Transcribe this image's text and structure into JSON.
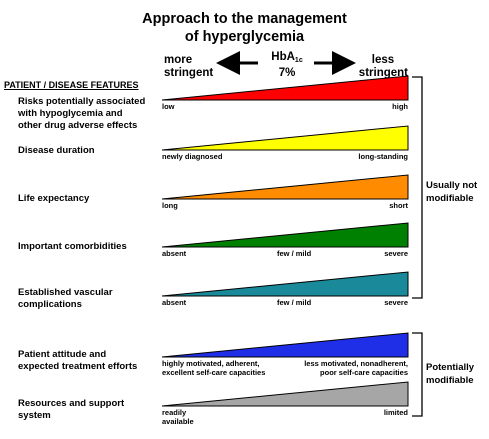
{
  "title_line1": "Approach to the management",
  "title_line2": "of hyperglycemia",
  "more_stringent_line1": "more",
  "more_stringent_line2": "stringent",
  "less_stringent_line1": "less",
  "less_stringent_line2": "stringent",
  "hba_label": "HbA",
  "hba_sub": "1c",
  "hba_value": "7%",
  "features_header": "PATIENT / DISEASE FEATURES",
  "colors": {
    "red": "#ff0000",
    "yellow": "#ffff00",
    "orange": "#ff8c00",
    "green": "#008000",
    "teal": "#1a8a9a",
    "blue": "#1f2fe8",
    "gray": "#a6a6a6"
  },
  "features": [
    {
      "label_lines": [
        "Risks potentially associated",
        "with hypoglycemia and",
        "other drug adverse effects"
      ],
      "color": "red",
      "ticks": [
        "low",
        "high"
      ]
    },
    {
      "label_lines": [
        "Disease duration"
      ],
      "color": "yellow",
      "ticks": [
        "newly diagnosed",
        "long-standing"
      ]
    },
    {
      "label_lines": [
        "Life expectancy"
      ],
      "color": "orange",
      "ticks": [
        "long",
        "short"
      ]
    },
    {
      "label_lines": [
        "Important comorbidities"
      ],
      "color": "green",
      "ticks": [
        "absent",
        "few / mild",
        "severe"
      ]
    },
    {
      "label_lines": [
        "Established vascular",
        "complications"
      ],
      "color": "teal",
      "ticks": [
        "absent",
        "few / mild",
        "severe"
      ]
    },
    {
      "label_lines": [
        "Patient attitude and",
        "expected treatment efforts"
      ],
      "color": "blue",
      "ticks_left": [
        "highly motivated, adherent,",
        "excellent self-care capacities"
      ],
      "ticks_right": [
        "less motivated, nonadherent,",
        "poor self-care capacities"
      ]
    },
    {
      "label_lines": [
        "Resources and support",
        "system"
      ],
      "color": "gray",
      "ticks_left": [
        "readily",
        "available"
      ],
      "ticks_right": [
        "limited"
      ]
    }
  ],
  "bracket_usually": [
    "Usually not",
    "modifiable"
  ],
  "bracket_potentially": [
    "Potentially",
    "modifiable"
  ]
}
